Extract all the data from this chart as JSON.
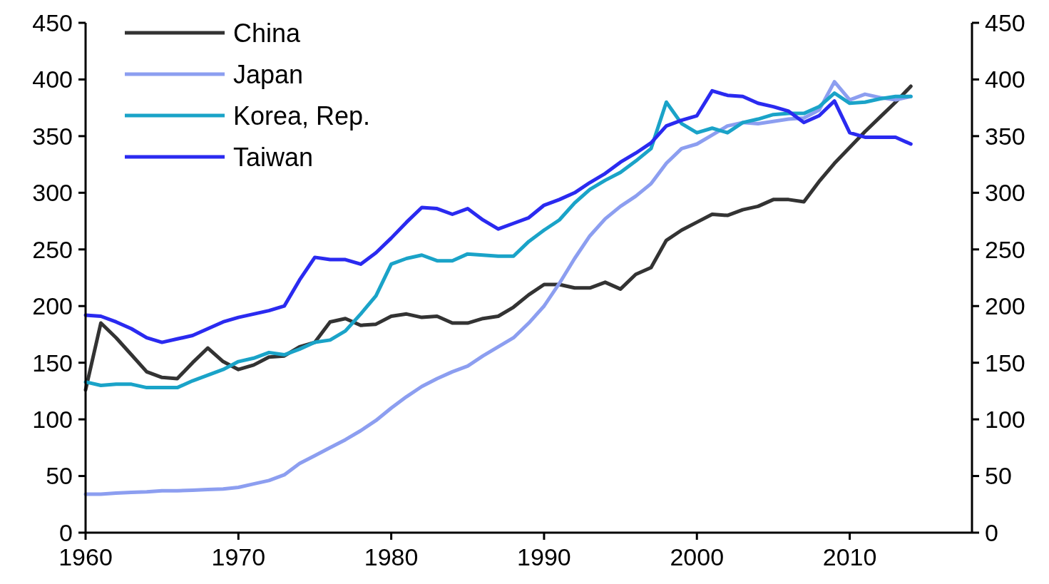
{
  "chart_data": {
    "type": "line",
    "x": [
      1960,
      1961,
      1962,
      1963,
      1964,
      1965,
      1966,
      1967,
      1968,
      1969,
      1970,
      1971,
      1972,
      1973,
      1974,
      1975,
      1976,
      1977,
      1978,
      1979,
      1980,
      1981,
      1982,
      1983,
      1984,
      1985,
      1986,
      1987,
      1988,
      1989,
      1990,
      1991,
      1992,
      1993,
      1994,
      1995,
      1996,
      1997,
      1998,
      1999,
      2000,
      2001,
      2002,
      2003,
      2004,
      2005,
      2006,
      2007,
      2008,
      2009,
      2010,
      2011,
      2012,
      2013,
      2014
    ],
    "series": [
      {
        "name": "China",
        "color": "#333333",
        "values": [
          126,
          185,
          172,
          157,
          142,
          137,
          136,
          150,
          163,
          151,
          144,
          148,
          155,
          156,
          164,
          168,
          186,
          189,
          183,
          184,
          191,
          193,
          190,
          191,
          185,
          185,
          189,
          191,
          199,
          210,
          219,
          219,
          216,
          216,
          221,
          215,
          228,
          234,
          258,
          267,
          274,
          281,
          280,
          285,
          288,
          294,
          294,
          292,
          310,
          326,
          340,
          354,
          367,
          380,
          394
        ]
      },
      {
        "name": "Japan",
        "color": "#8c9ef0",
        "values": [
          34,
          34,
          35,
          35.5,
          36,
          37,
          37,
          37.5,
          38,
          38.5,
          40,
          43,
          46,
          51,
          61,
          68,
          75,
          82,
          90,
          99,
          110,
          120,
          129,
          136,
          142,
          147,
          156,
          164,
          172,
          185,
          200,
          220,
          242,
          262,
          277,
          288,
          297,
          308,
          326,
          339,
          343,
          351,
          359,
          362,
          361,
          363,
          365,
          366,
          373,
          398,
          382,
          387,
          384,
          382,
          385
        ]
      },
      {
        "name": "Korea, Rep.",
        "color": "#1aa3c8",
        "values": [
          133,
          130,
          131,
          131,
          128,
          128,
          128,
          134,
          139,
          144,
          151,
          154,
          159,
          157,
          162,
          168,
          170,
          178,
          193,
          209,
          237,
          242,
          245,
          240,
          240,
          246,
          245,
          244,
          244,
          257,
          267,
          276,
          291,
          303,
          311,
          318,
          328,
          339,
          380,
          361,
          353,
          357,
          353,
          362,
          365,
          369,
          370,
          370,
          376,
          388,
          379,
          380,
          383,
          385,
          385
        ]
      },
      {
        "name": "Taiwan",
        "color": "#2a2af0",
        "values": [
          192,
          191,
          186,
          180,
          172,
          168,
          171,
          174,
          180,
          186,
          190,
          193,
          196,
          200,
          223,
          243,
          241,
          241,
          237,
          247,
          260,
          274,
          287,
          286,
          281,
          286,
          276,
          268,
          273,
          278,
          289,
          294,
          300,
          309,
          317,
          327,
          335,
          344,
          359,
          364,
          368,
          390,
          386,
          385,
          379,
          376,
          372,
          362,
          368,
          381,
          353,
          349,
          349,
          349,
          343
        ]
      }
    ],
    "xlim": [
      1960,
      2018
    ],
    "xticks": [
      1960,
      1970,
      1980,
      1990,
      2000,
      2010
    ],
    "ylim": [
      0,
      450
    ],
    "yticks": [
      0,
      50,
      100,
      150,
      200,
      250,
      300,
      350,
      400,
      450
    ],
    "y2lim": [
      0,
      450
    ],
    "y2ticks": [
      0,
      50,
      100,
      150,
      200,
      250,
      300,
      350,
      400,
      450
    ],
    "legend": "top left",
    "grid": false,
    "marker": "none",
    "line_style": "solid"
  }
}
